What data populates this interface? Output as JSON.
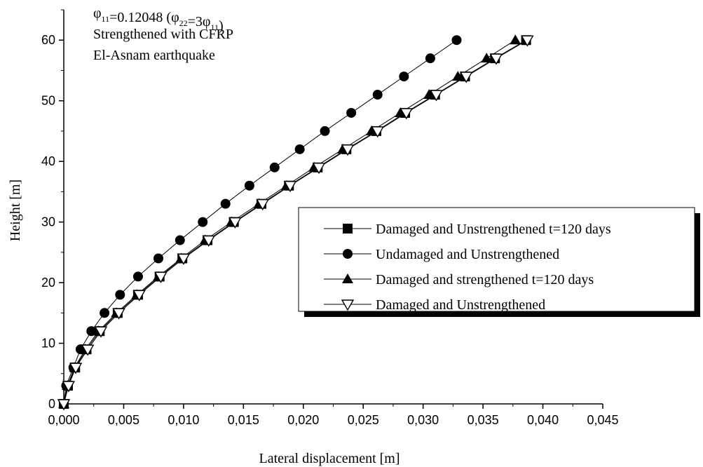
{
  "chart_data": {
    "type": "line",
    "annotations": [
      {
        "segments": [
          {
            "text": "φ",
            "sub": "11"
          },
          {
            "text": "=0.12048 ("
          },
          {
            "text": "φ",
            "sub": "22"
          },
          {
            "text": "=3"
          },
          {
            "text": "φ",
            "sub": "11"
          },
          {
            "text": ")"
          }
        ]
      },
      {
        "segments": [
          {
            "text": "Strengthened with CFRP"
          }
        ]
      },
      {
        "segments": [
          {
            "text": "El-Asnam earthquake"
          }
        ]
      }
    ],
    "xlabel": "Lateral displacement [m]",
    "ylabel": "Height [m]",
    "xlim": [
      0,
      0.045
    ],
    "ylim": [
      0,
      65
    ],
    "xticks": [
      0,
      0.005,
      0.01,
      0.015,
      0.02,
      0.025,
      0.03,
      0.035,
      0.04,
      0.045
    ],
    "xtick_labels": [
      "0,000",
      "0,005",
      "0,010",
      "0,015",
      "0,020",
      "0,025",
      "0,030",
      "0,035",
      "0,040",
      "0,045"
    ],
    "yticks": [
      0,
      10,
      20,
      30,
      40,
      50,
      60
    ],
    "ytick_labels": [
      "0",
      "10",
      "20",
      "30",
      "40",
      "50",
      "60"
    ],
    "grid": false,
    "legend_position": "center-right",
    "series": [
      {
        "name": "Damaged and Unstrengthened t=120 days",
        "marker": "square",
        "x": [
          0,
          0.00035,
          0.00095,
          0.0019,
          0.003,
          0.0045,
          0.0062,
          0.008,
          0.0099,
          0.012,
          0.0142,
          0.0165,
          0.0188,
          0.0212,
          0.0236,
          0.0261,
          0.0285,
          0.031,
          0.0335,
          0.036,
          0.0386
        ],
        "y": [
          0,
          3,
          6,
          9,
          12,
          15,
          18,
          21,
          24,
          27,
          30,
          33,
          36,
          39,
          42,
          45,
          48,
          51,
          54,
          57,
          60
        ]
      },
      {
        "name": "Undamaged and Unstrengthened",
        "marker": "circle",
        "x": [
          0,
          0.0002,
          0.0008,
          0.0014,
          0.0023,
          0.0034,
          0.0047,
          0.0062,
          0.0079,
          0.0097,
          0.0116,
          0.0135,
          0.0155,
          0.0176,
          0.0197,
          0.0218,
          0.024,
          0.0262,
          0.0284,
          0.0306,
          0.0328
        ],
        "y": [
          0,
          3,
          6,
          9,
          12,
          15,
          18,
          21,
          24,
          27,
          30,
          33,
          36,
          39,
          42,
          45,
          48,
          51,
          54,
          57,
          60
        ]
      },
      {
        "name": "Damaged and strengthened t=120 days",
        "marker": "triangle-up",
        "x": [
          0,
          0.0003,
          0.0009,
          0.0018,
          0.0029,
          0.0044,
          0.0061,
          0.0079,
          0.0098,
          0.0118,
          0.014,
          0.0163,
          0.0186,
          0.0209,
          0.0233,
          0.0257,
          0.0281,
          0.0305,
          0.0329,
          0.0353,
          0.0377
        ],
        "y": [
          0,
          3,
          6,
          9,
          12,
          15,
          18,
          21,
          24,
          27,
          30,
          33,
          36,
          39,
          42,
          45,
          48,
          51,
          54,
          57,
          60
        ]
      },
      {
        "name": "Damaged and Unstrengthened",
        "marker": "triangle-down-open",
        "x": [
          0,
          0.0004,
          0.001,
          0.002,
          0.0031,
          0.0046,
          0.0063,
          0.0081,
          0.01,
          0.0121,
          0.0143,
          0.0166,
          0.0189,
          0.0213,
          0.0237,
          0.0262,
          0.0286,
          0.0311,
          0.0336,
          0.0361,
          0.0387
        ],
        "y": [
          0,
          3,
          6,
          9,
          12,
          15,
          18,
          21,
          24,
          27,
          30,
          33,
          36,
          39,
          42,
          45,
          48,
          51,
          54,
          57,
          60
        ]
      }
    ]
  }
}
